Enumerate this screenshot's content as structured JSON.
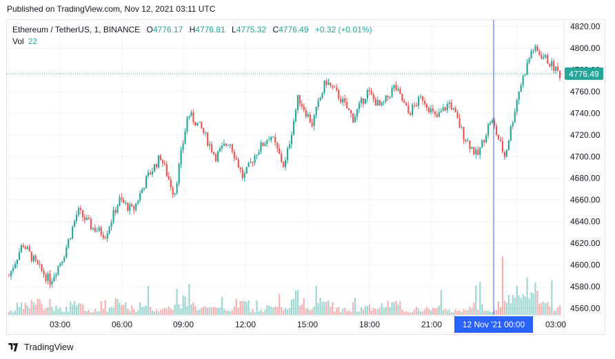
{
  "header": {
    "published": "Published on TradingView.com, Nov 12, 2021 03:11 UTC"
  },
  "legend": {
    "symbol": "Ethereum / TetherUS, 1, BINANCE",
    "o_label": "O",
    "o_value": "4776.17",
    "h_label": "H",
    "h_value": "4776.81",
    "l_label": "L",
    "l_value": "4775.32",
    "c_label": "C",
    "c_value": "4776.49",
    "change": "+0.32 (+0.01%)",
    "vol_label": "Vol",
    "vol_value": "22"
  },
  "footer": {
    "brand": "TradingView"
  },
  "colors": {
    "up": "#26a69a",
    "down": "#ef5350",
    "grid": "#f0f3fa",
    "crosshair": "#2962ff",
    "price_tag": "#26a69a",
    "axis_text": "#131722"
  },
  "chart_data": {
    "type": "candlestick",
    "y_ticks": [
      "4820.00",
      "4800.00",
      "4780.00",
      "4760.00",
      "4740.00",
      "4720.00",
      "4700.00",
      "4680.00",
      "4660.00",
      "4640.00",
      "4620.00",
      "4600.00",
      "4580.00",
      "4560.00"
    ],
    "ylim": [
      4554,
      4826
    ],
    "x_ticks": [
      "03:00",
      "06:00",
      "09:00",
      "12:00",
      "15:00",
      "18:00",
      "21:00",
      "00:00",
      "03:00"
    ],
    "crosshair_label": "12 Nov '21   00:00",
    "last_price": "4776.49",
    "last_price_value": 4776.49,
    "price_path": [
      [
        0,
        4590
      ],
      [
        1,
        4620
      ],
      [
        2,
        4600
      ],
      [
        3,
        4585
      ],
      [
        4,
        4610
      ],
      [
        5,
        4650
      ],
      [
        6,
        4635
      ],
      [
        7,
        4628
      ],
      [
        8,
        4660
      ],
      [
        9,
        4650
      ],
      [
        10,
        4680
      ],
      [
        11,
        4700
      ],
      [
        12,
        4665
      ],
      [
        13,
        4740
      ],
      [
        14,
        4725
      ],
      [
        15,
        4700
      ],
      [
        16,
        4715
      ],
      [
        17,
        4680
      ],
      [
        18,
        4705
      ],
      [
        19,
        4720
      ],
      [
        20,
        4690
      ],
      [
        21,
        4755
      ],
      [
        22,
        4730
      ],
      [
        23,
        4770
      ],
      [
        24,
        4755
      ],
      [
        25,
        4735
      ],
      [
        26,
        4760
      ],
      [
        27,
        4745
      ],
      [
        28,
        4765
      ],
      [
        29,
        4740
      ],
      [
        30,
        4755
      ],
      [
        31,
        4735
      ],
      [
        32,
        4750
      ],
      [
        33,
        4720
      ],
      [
        34,
        4700
      ],
      [
        35,
        4735
      ],
      [
        36,
        4700
      ],
      [
        37,
        4760
      ],
      [
        38,
        4800
      ],
      [
        39,
        4790
      ],
      [
        40,
        4776
      ]
    ],
    "volume_profile": [
      3,
      6,
      9,
      5,
      4,
      7,
      3,
      4,
      8,
      3,
      5,
      4,
      6,
      10,
      5,
      4,
      4,
      8,
      3,
      5,
      4,
      12,
      6,
      9,
      4,
      3,
      5,
      4,
      7,
      3,
      4,
      5,
      3,
      4,
      6,
      4,
      10,
      14,
      18,
      8,
      5
    ]
  }
}
